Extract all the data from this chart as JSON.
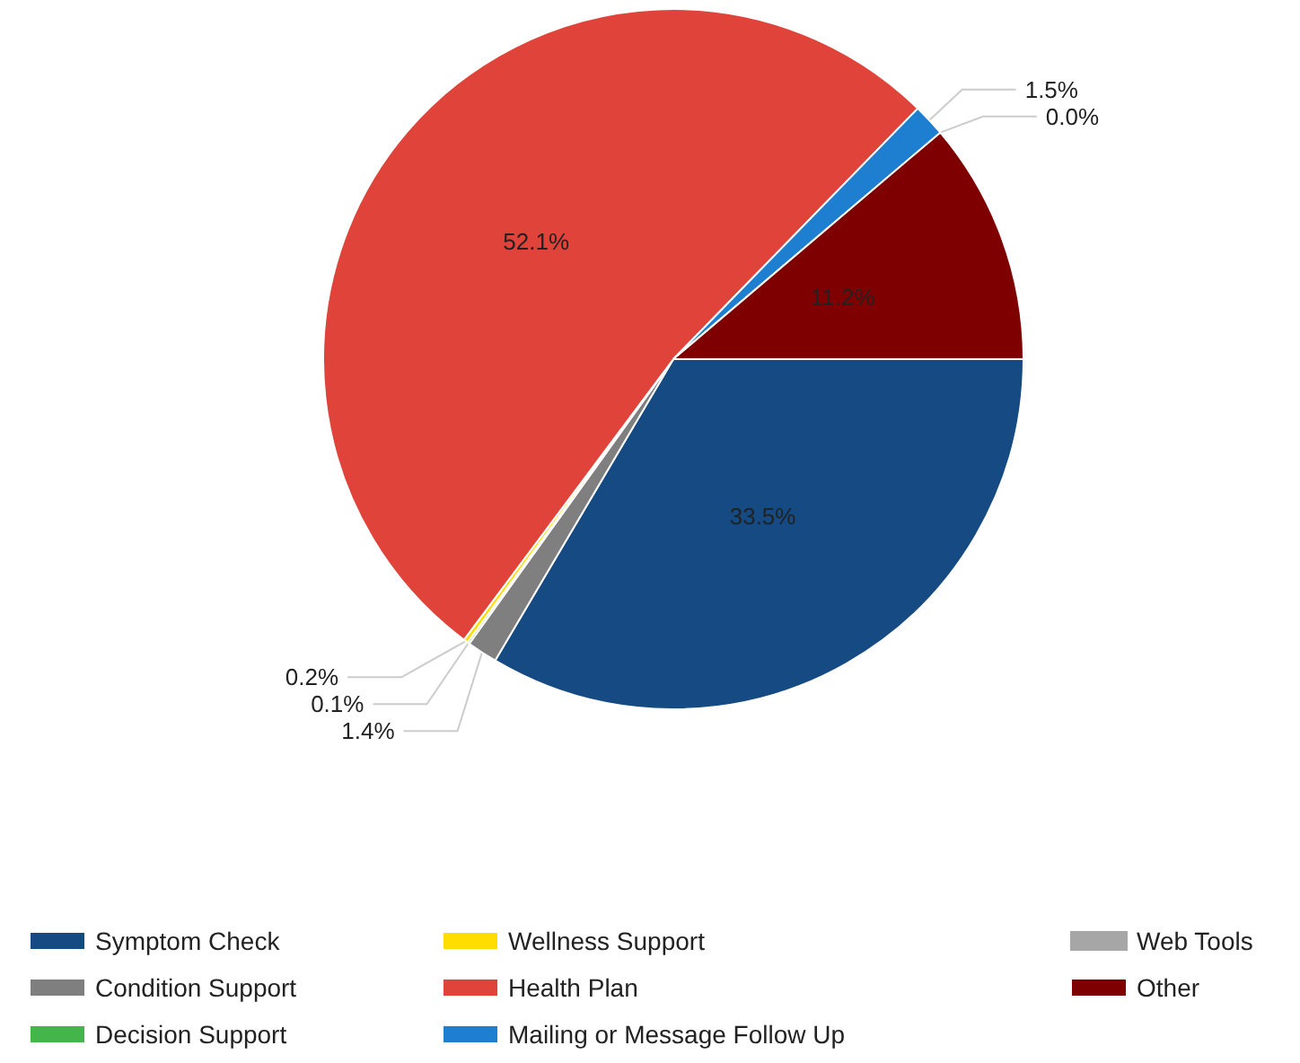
{
  "chart_data": {
    "type": "pie",
    "categories": [
      "Symptom Check",
      "Condition Support",
      "Decision Support",
      "Wellness Support",
      "Health Plan",
      "Mailing or Message Follow Up",
      "Web Tools",
      "Other"
    ],
    "values": [
      33.5,
      1.4,
      0.1,
      0.2,
      52.1,
      1.5,
      0.0,
      11.2
    ],
    "colors": [
      "#154a82",
      "#7f7f7f",
      "#43b54a",
      "#ffdd00",
      "#e0433a",
      "#1e7fd0",
      "#a6a6a6",
      "#7f0000"
    ],
    "value_labels": [
      "33.5%",
      "1.4%",
      "0.1%",
      "0.2%",
      "52.1%",
      "1.5%",
      "0.0%",
      "11.2%"
    ],
    "legend": "bottom"
  }
}
